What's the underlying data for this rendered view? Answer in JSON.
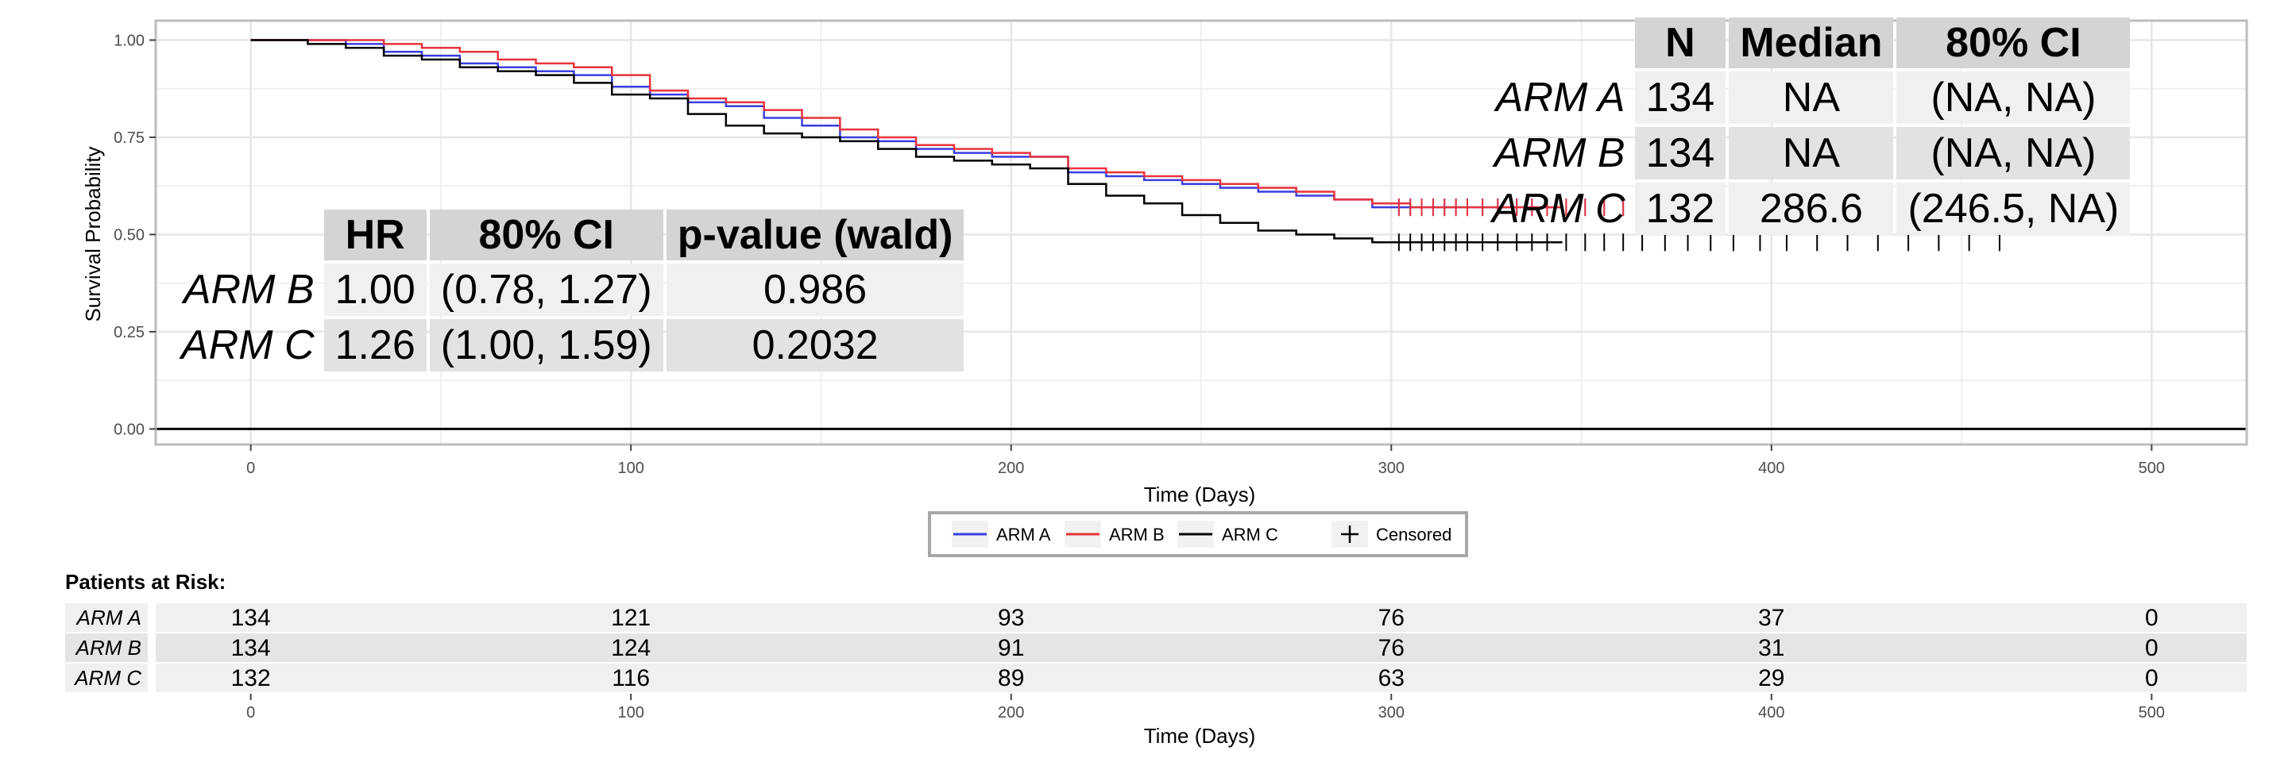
{
  "chart_data": {
    "type": "line",
    "xlabel": "Time (Days)",
    "ylabel": "Survival Probability",
    "xlim": [
      -25,
      525
    ],
    "ylim": [
      -0.04,
      1.05
    ],
    "xticks": [
      0,
      100,
      200,
      300,
      400,
      500
    ],
    "yticks": [
      0.0,
      0.25,
      0.5,
      0.75,
      1.0
    ],
    "ytick_labels": [
      "0.00",
      "0.25",
      "0.50",
      "0.75",
      "1.00"
    ],
    "grid": true,
    "series": [
      {
        "name": "ARM A",
        "color": "#3a3ee0",
        "x": [
          0,
          15,
          25,
          35,
          45,
          55,
          65,
          75,
          85,
          95,
          105,
          115,
          125,
          135,
          145,
          155,
          165,
          175,
          185,
          195,
          205,
          215,
          225,
          235,
          245,
          255,
          265,
          275,
          285,
          295,
          305,
          345
        ],
        "y": [
          1.0,
          1.0,
          0.99,
          0.97,
          0.96,
          0.94,
          0.93,
          0.92,
          0.91,
          0.88,
          0.86,
          0.84,
          0.83,
          0.8,
          0.78,
          0.75,
          0.74,
          0.72,
          0.71,
          0.7,
          0.7,
          0.66,
          0.65,
          0.64,
          0.63,
          0.62,
          0.61,
          0.6,
          0.59,
          0.57,
          0.57,
          0.57
        ]
      },
      {
        "name": "ARM B",
        "color": "#e8343c",
        "x": [
          0,
          15,
          25,
          35,
          45,
          55,
          65,
          75,
          85,
          95,
          105,
          115,
          125,
          135,
          145,
          155,
          165,
          175,
          185,
          195,
          205,
          215,
          225,
          235,
          245,
          255,
          265,
          275,
          285,
          295,
          305,
          345
        ],
        "y": [
          1.0,
          1.0,
          1.0,
          0.99,
          0.98,
          0.97,
          0.95,
          0.94,
          0.93,
          0.91,
          0.87,
          0.85,
          0.84,
          0.82,
          0.8,
          0.77,
          0.75,
          0.73,
          0.72,
          0.71,
          0.7,
          0.67,
          0.66,
          0.65,
          0.64,
          0.63,
          0.62,
          0.61,
          0.59,
          0.58,
          0.57,
          0.57
        ]
      },
      {
        "name": "ARM C",
        "color": "#000000",
        "x": [
          0,
          15,
          25,
          35,
          45,
          55,
          65,
          75,
          85,
          95,
          105,
          115,
          125,
          135,
          145,
          155,
          165,
          175,
          185,
          195,
          205,
          215,
          225,
          235,
          245,
          255,
          265,
          275,
          285,
          295,
          305,
          345
        ],
        "y": [
          1.0,
          0.99,
          0.98,
          0.96,
          0.95,
          0.93,
          0.92,
          0.91,
          0.89,
          0.86,
          0.85,
          0.81,
          0.78,
          0.76,
          0.75,
          0.74,
          0.72,
          0.7,
          0.69,
          0.68,
          0.67,
          0.63,
          0.6,
          0.58,
          0.55,
          0.53,
          0.51,
          0.5,
          0.49,
          0.48,
          0.48,
          0.48
        ]
      }
    ],
    "censor_times": [
      302,
      305,
      308,
      311,
      314,
      317,
      320,
      324,
      328,
      333,
      337,
      341,
      346,
      351,
      356,
      361,
      366,
      372,
      378,
      384,
      390,
      397,
      404,
      412,
      420,
      428,
      436,
      444,
      452,
      460
    ],
    "legend": {
      "position": "bottom",
      "items": [
        "ARM A",
        "ARM B",
        "ARM C",
        "Censored"
      ]
    },
    "stats_table": {
      "columns": [
        "N",
        "Median",
        "80% CI"
      ],
      "rows": [
        {
          "name": "ARM A",
          "cells": [
            "134",
            "NA",
            "(NA, NA)"
          ]
        },
        {
          "name": "ARM B",
          "cells": [
            "134",
            "NA",
            "(NA, NA)"
          ]
        },
        {
          "name": "ARM C",
          "cells": [
            "132",
            "286.6",
            "(246.5, NA)"
          ]
        }
      ]
    },
    "hr_table": {
      "columns": [
        "HR",
        "80% CI",
        "p-value (wald)"
      ],
      "rows": [
        {
          "name": "ARM B",
          "cells": [
            "1.00",
            "(0.78, 1.27)",
            "0.986"
          ]
        },
        {
          "name": "ARM C",
          "cells": [
            "1.26",
            "(1.00, 1.59)",
            "0.2032"
          ]
        }
      ]
    },
    "risk_table": {
      "title": "Patients at Risk:",
      "times": [
        0,
        100,
        200,
        300,
        400,
        500
      ],
      "rows": [
        {
          "name": "ARM A",
          "counts": [
            "134",
            "121",
            "93",
            "76",
            "37",
            "0"
          ]
        },
        {
          "name": "ARM B",
          "counts": [
            "134",
            "124",
            "91",
            "76",
            "31",
            "0"
          ]
        },
        {
          "name": "ARM C",
          "counts": [
            "132",
            "116",
            "89",
            "63",
            "29",
            "0"
          ]
        }
      ],
      "xlabel": "Time (Days)"
    }
  }
}
